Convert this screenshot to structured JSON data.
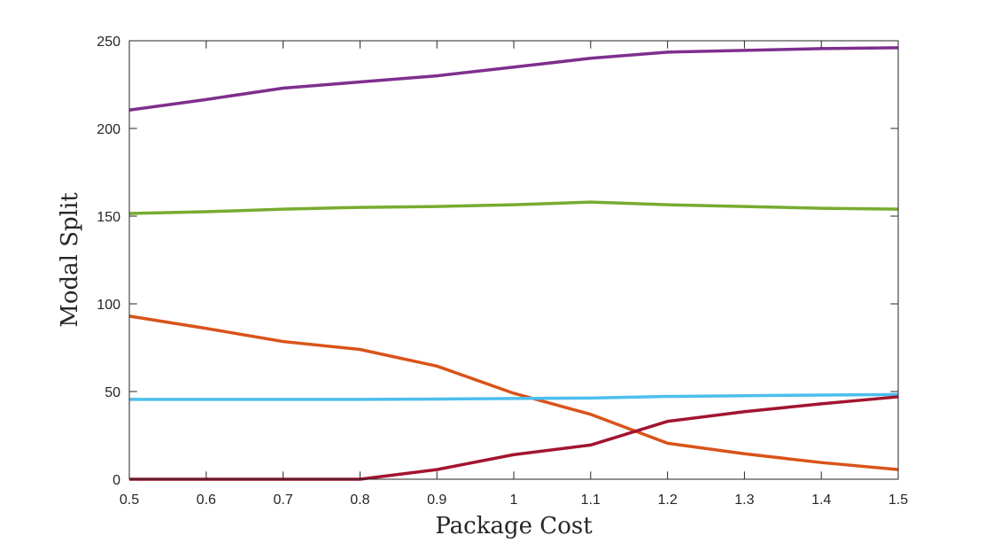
{
  "chart_data": {
    "type": "line",
    "title": "",
    "xlabel": "Package Cost",
    "ylabel": "Modal Split",
    "xlim": [
      0.5,
      1.5
    ],
    "ylim": [
      0,
      250
    ],
    "grid": false,
    "x": [
      0.5,
      0.6,
      0.7,
      0.8,
      0.9,
      1.0,
      1.1,
      1.2,
      1.3,
      1.4,
      1.5
    ],
    "x_ticks": [
      "0.5",
      "0.6",
      "0.7",
      "0.8",
      "0.9",
      "1",
      "1.1",
      "1.2",
      "1.3",
      "1.4",
      "1.5"
    ],
    "y_ticks": [
      "0",
      "50",
      "100",
      "150",
      "200",
      "250"
    ],
    "series": [
      {
        "name": "purple",
        "color": "#7E2F8E",
        "values": [
          210.5,
          216.5,
          223,
          226.5,
          230,
          235,
          240,
          243.5,
          244.5,
          245.5,
          246
        ]
      },
      {
        "name": "green",
        "color": "#77AC30",
        "values": [
          151.5,
          152.5,
          154,
          155,
          155.5,
          156.5,
          158,
          156.5,
          155.5,
          154.5,
          154
        ]
      },
      {
        "name": "orange",
        "color": "#D95319",
        "values": [
          93,
          86,
          78.5,
          74,
          64.5,
          49,
          37,
          20.5,
          14.5,
          9.5,
          5.5
        ]
      },
      {
        "name": "light-blue",
        "color": "#4DBEEE",
        "values": [
          45.5,
          45.5,
          45.5,
          45.5,
          45.7,
          46,
          46.3,
          47.2,
          47.6,
          48,
          48.3
        ]
      },
      {
        "name": "dark-red",
        "color": "#A2142F",
        "values": [
          0,
          0,
          0,
          0,
          5.5,
          14,
          19.5,
          33,
          38.5,
          43,
          47
        ]
      }
    ]
  }
}
